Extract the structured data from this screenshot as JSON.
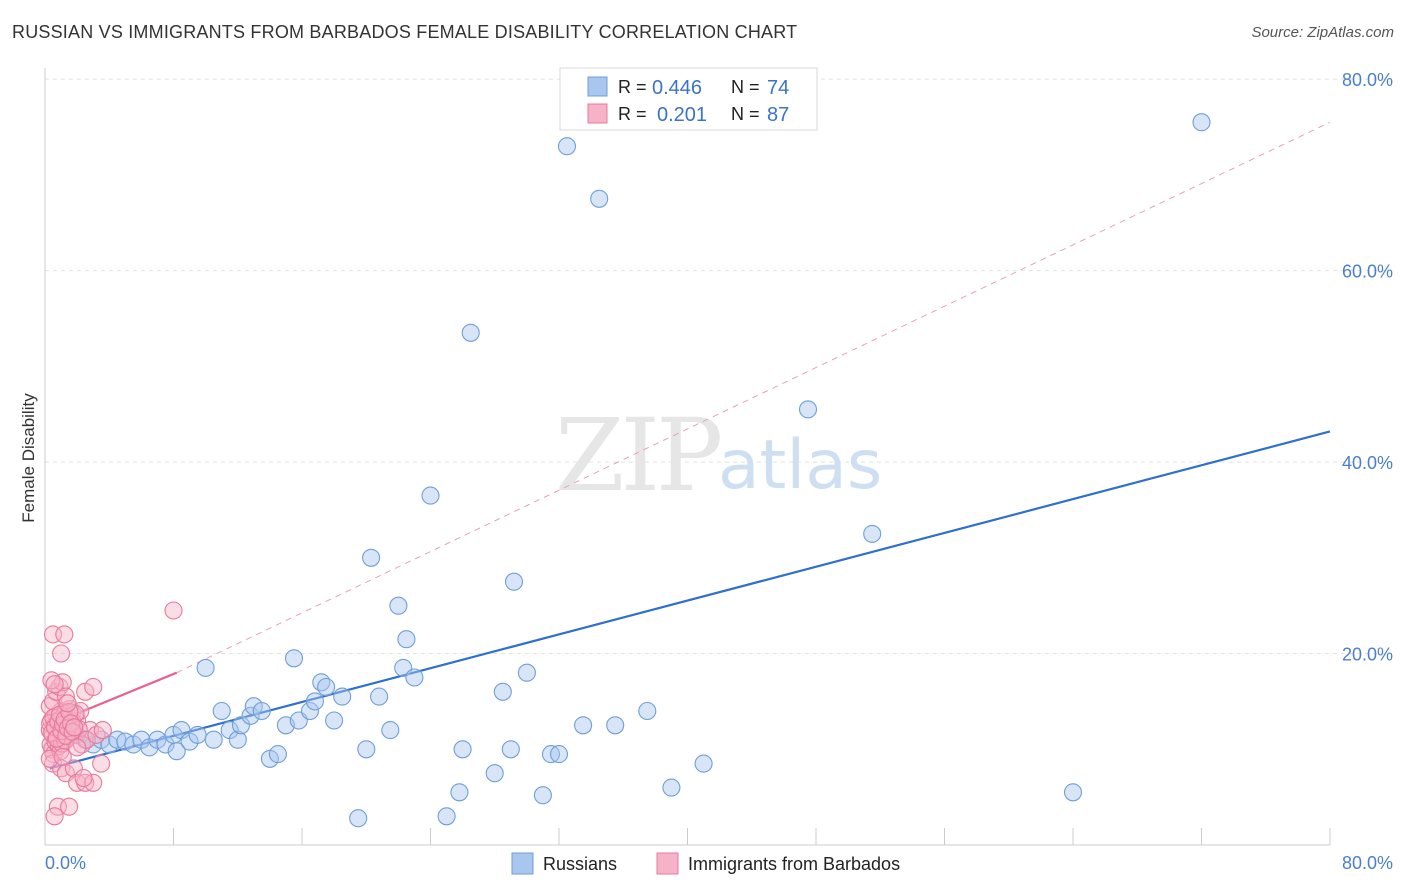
{
  "title": "RUSSIAN VS IMMIGRANTS FROM BARBADOS FEMALE DISABILITY CORRELATION CHART",
  "source": "Source: ZipAtlas.com",
  "watermark": {
    "zip": "ZIP",
    "atlas": "atlas"
  },
  "chart_data": {
    "type": "scatter",
    "xlabel": "",
    "ylabel": "Female Disability",
    "xlim": [
      0,
      80
    ],
    "ylim": [
      0,
      82
    ],
    "x_tick_labels": [
      {
        "value": 0,
        "label": "0.0%"
      },
      {
        "value": 80,
        "label": "80.0%"
      }
    ],
    "y_tick_labels": [
      {
        "value": 20,
        "label": "20.0%"
      },
      {
        "value": 40,
        "label": "40.0%"
      },
      {
        "value": 60,
        "label": "60.0%"
      },
      {
        "value": 80,
        "label": "80.0%"
      }
    ],
    "gridlines": [
      20,
      40,
      60,
      80
    ],
    "legend": [
      {
        "name": "Russians",
        "color": "#a8c6ee",
        "stroke": "#6f9fd8",
        "r_label": "R =",
        "r_value": "0.446",
        "n_label": "N =",
        "n_value": "74"
      },
      {
        "name": "Immigrants from Barbados",
        "color": "#f6b3c8",
        "stroke": "#e8799c",
        "r_label": "R =",
        "r_value": "0.201",
        "n_label": "N =",
        "n_value": "87"
      }
    ],
    "series": [
      {
        "name": "Russians",
        "color": "#a8c6ee",
        "stroke": "#6f9fd8",
        "trend": {
          "x": [
            0.3,
            80
          ],
          "y": [
            8.0,
            43.2
          ],
          "color": "#2e6fd0",
          "style": "solid"
        },
        "points": [
          [
            0.8,
            11.5
          ],
          [
            1.2,
            11.0
          ],
          [
            1.6,
            12.0
          ],
          [
            2.0,
            11.5
          ],
          [
            2.5,
            11.0
          ],
          [
            3.0,
            10.5
          ],
          [
            3.5,
            11.0
          ],
          [
            4.0,
            10.5
          ],
          [
            4.5,
            11.0
          ],
          [
            5.0,
            10.8
          ],
          [
            5.5,
            10.5
          ],
          [
            6.0,
            11.0
          ],
          [
            6.5,
            10.2
          ],
          [
            7.0,
            11.0
          ],
          [
            7.5,
            10.5
          ],
          [
            8.0,
            11.5
          ],
          [
            8.2,
            9.8
          ],
          [
            8.5,
            12.0
          ],
          [
            9.0,
            10.8
          ],
          [
            9.5,
            11.5
          ],
          [
            10.0,
            18.5
          ],
          [
            10.5,
            11.0
          ],
          [
            11.0,
            14.0
          ],
          [
            11.5,
            12.0
          ],
          [
            12.0,
            11.0
          ],
          [
            12.2,
            12.5
          ],
          [
            12.8,
            13.5
          ],
          [
            13.0,
            14.5
          ],
          [
            13.5,
            14.0
          ],
          [
            14.0,
            9.0
          ],
          [
            14.5,
            9.5
          ],
          [
            15.0,
            12.5
          ],
          [
            15.5,
            19.5
          ],
          [
            15.8,
            13.0
          ],
          [
            16.5,
            14.0
          ],
          [
            16.8,
            15.0
          ],
          [
            17.2,
            17.0
          ],
          [
            17.5,
            16.5
          ],
          [
            18.0,
            13.0
          ],
          [
            18.5,
            15.5
          ],
          [
            19.5,
            2.8
          ],
          [
            20.0,
            10.0
          ],
          [
            20.3,
            30.0
          ],
          [
            20.8,
            15.5
          ],
          [
            21.5,
            12.0
          ],
          [
            22.0,
            25.0
          ],
          [
            22.3,
            18.5
          ],
          [
            22.5,
            21.5
          ],
          [
            23.0,
            17.5
          ],
          [
            24.0,
            36.5
          ],
          [
            25.0,
            3.0
          ],
          [
            25.8,
            5.5
          ],
          [
            26.5,
            53.5
          ],
          [
            26.0,
            10.0
          ],
          [
            28.0,
            7.5
          ],
          [
            28.5,
            16.0
          ],
          [
            29.0,
            10.0
          ],
          [
            29.2,
            27.5
          ],
          [
            30.0,
            18.0
          ],
          [
            31.0,
            5.2
          ],
          [
            31.5,
            9.5
          ],
          [
            32.0,
            9.5
          ],
          [
            32.5,
            73.0
          ],
          [
            33.5,
            12.5
          ],
          [
            34.5,
            67.5
          ],
          [
            35.5,
            12.5
          ],
          [
            37.5,
            14.0
          ],
          [
            39.0,
            6.0
          ],
          [
            41.0,
            8.5
          ],
          [
            47.5,
            45.5
          ],
          [
            51.5,
            32.5
          ],
          [
            64.0,
            5.5
          ],
          [
            72.0,
            75.5
          ],
          [
            1.0,
            12.5
          ]
        ]
      },
      {
        "name": "Immigrants from Barbados",
        "color": "#f6b3c8",
        "stroke": "#e8799c",
        "trend": {
          "x": [
            0.2,
            8.2
          ],
          "y": [
            12.5,
            18.0
          ],
          "color": "#e8628c",
          "style": "solid"
        },
        "trend_extended": {
          "x": [
            8.2,
            80
          ],
          "y": [
            18.0,
            75.5
          ],
          "color": "#e8a0b8",
          "style": "dashed"
        },
        "points": [
          [
            0.3,
            12.0
          ],
          [
            0.4,
            13.0
          ],
          [
            0.5,
            11.5
          ],
          [
            0.6,
            12.5
          ],
          [
            0.7,
            13.5
          ],
          [
            0.8,
            11.0
          ],
          [
            0.9,
            12.0
          ],
          [
            1.0,
            14.0
          ],
          [
            1.1,
            12.5
          ],
          [
            1.2,
            11.8
          ],
          [
            1.3,
            13.2
          ],
          [
            1.4,
            12.2
          ],
          [
            1.5,
            11.3
          ],
          [
            1.6,
            12.8
          ],
          [
            1.7,
            13.8
          ],
          [
            1.8,
            12.4
          ],
          [
            1.9,
            11.6
          ],
          [
            2.0,
            13.0
          ],
          [
            0.35,
            10.5
          ],
          [
            0.45,
            10.0
          ],
          [
            0.55,
            9.5
          ],
          [
            0.65,
            10.8
          ],
          [
            0.75,
            11.2
          ],
          [
            0.85,
            10.3
          ],
          [
            0.95,
            9.8
          ],
          [
            1.05,
            10.6
          ],
          [
            1.15,
            11.4
          ],
          [
            1.25,
            10.9
          ],
          [
            1.35,
            12.6
          ],
          [
            1.45,
            13.4
          ],
          [
            1.55,
            14.2
          ],
          [
            1.65,
            11.9
          ],
          [
            0.3,
            14.5
          ],
          [
            0.5,
            15.0
          ],
          [
            0.7,
            16.0
          ],
          [
            0.9,
            16.5
          ],
          [
            1.1,
            17.0
          ],
          [
            1.3,
            15.5
          ],
          [
            0.4,
            17.2
          ],
          [
            0.6,
            16.8
          ],
          [
            0.5,
            22.0
          ],
          [
            1.2,
            22.0
          ],
          [
            1.0,
            20.0
          ],
          [
            8.0,
            24.5
          ],
          [
            2.5,
            16.0
          ],
          [
            3.0,
            16.5
          ],
          [
            2.2,
            14.0
          ],
          [
            2.8,
            12.0
          ],
          [
            0.5,
            8.5
          ],
          [
            1.0,
            8.0
          ],
          [
            1.3,
            7.5
          ],
          [
            1.8,
            8.0
          ],
          [
            2.0,
            6.5
          ],
          [
            2.5,
            6.5
          ],
          [
            3.0,
            6.5
          ],
          [
            3.5,
            8.5
          ],
          [
            2.4,
            7.0
          ],
          [
            0.8,
            4.0
          ],
          [
            1.5,
            4.0
          ],
          [
            0.6,
            3.0
          ],
          [
            1.7,
            12.9
          ],
          [
            1.9,
            13.7
          ],
          [
            2.1,
            12.1
          ],
          [
            0.32,
            12.7
          ],
          [
            0.42,
            11.7
          ],
          [
            0.52,
            13.3
          ],
          [
            0.62,
            12.3
          ],
          [
            0.72,
            11.1
          ],
          [
            0.82,
            12.9
          ],
          [
            0.92,
            13.6
          ],
          [
            1.02,
            11.9
          ],
          [
            1.12,
            12.6
          ],
          [
            1.22,
            13.1
          ],
          [
            1.32,
            11.4
          ],
          [
            1.42,
            12.2
          ],
          [
            1.52,
            13.9
          ],
          [
            1.62,
            12.7
          ],
          [
            1.72,
            11.8
          ],
          [
            1.82,
            12.3
          ],
          [
            2.3,
            10.5
          ],
          [
            2.6,
            11.0
          ],
          [
            3.2,
            11.5
          ],
          [
            3.6,
            12.0
          ],
          [
            0.3,
            9.0
          ],
          [
            1.1,
            9.2
          ],
          [
            2.0,
            10.2
          ],
          [
            1.4,
            14.8
          ]
        ]
      }
    ]
  }
}
